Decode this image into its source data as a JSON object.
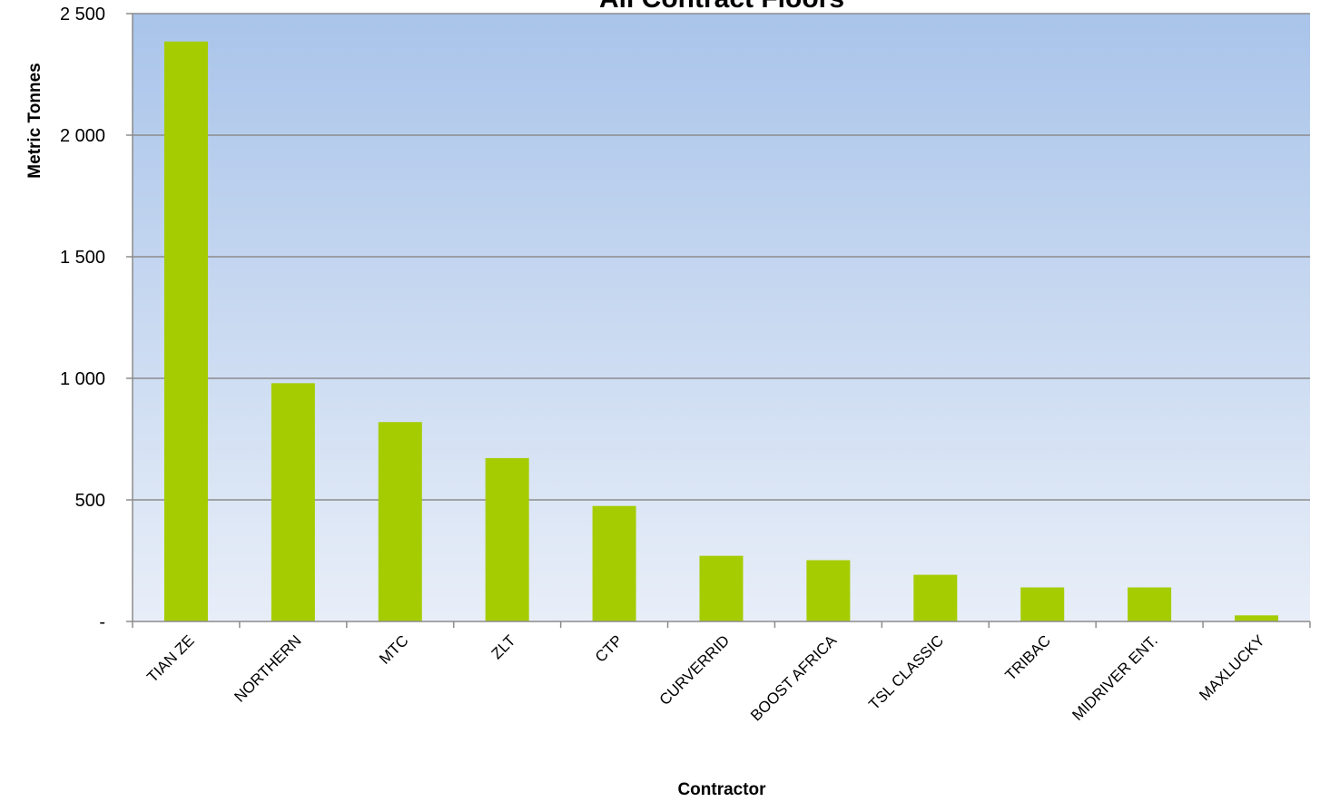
{
  "chart_data": {
    "type": "bar",
    "title": "All Contract Floors",
    "xlabel": "Contractor",
    "ylabel": "Metric Tonnes",
    "categories": [
      "TIAN ZE",
      "NORTHERN",
      "MTC",
      "ZLT",
      "CTP",
      "CURVERRID",
      "BOOST AFRICA",
      "TSL CLASSIC",
      "TRIBAC",
      "MIDRIVER ENT.",
      "MAXLUCKY"
    ],
    "values": [
      2385,
      980,
      820,
      672,
      475,
      270,
      252,
      192,
      140,
      140,
      25
    ],
    "ylim": [
      0,
      2500
    ],
    "yticks": [
      0,
      500,
      1000,
      1500,
      2000,
      2500
    ],
    "ytick_labels": [
      "-",
      "500",
      "1 000",
      "1 500",
      "2 000",
      "2 500"
    ],
    "grid": true,
    "legend": "none",
    "colors": {
      "bar": "#a5cc00",
      "plot_bg_top": "#a9c4ea",
      "plot_bg_bottom": "#e8eef8",
      "gridline": "#8c8c8c"
    }
  }
}
